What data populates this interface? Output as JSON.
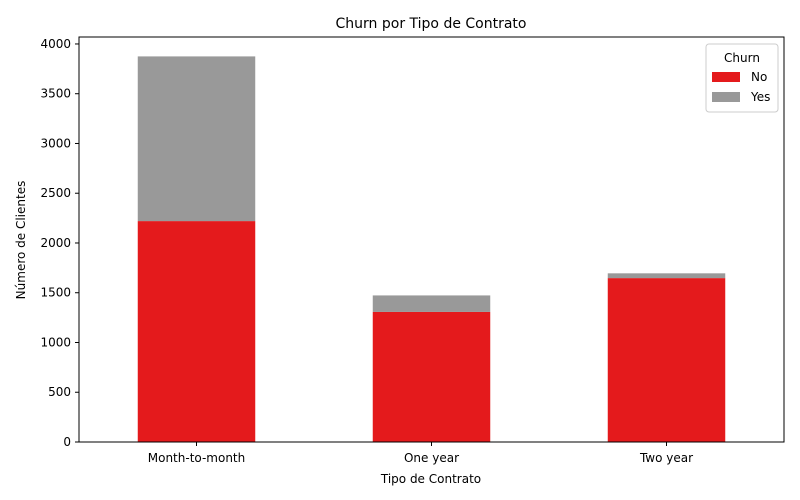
{
  "chart_data": {
    "type": "bar",
    "stacked": true,
    "title": "Churn por Tipo de Contrato",
    "xlabel": "Tipo de Contrato",
    "ylabel": "Número de Clientes",
    "categories": [
      "Month-to-month",
      "One year",
      "Two year"
    ],
    "series": [
      {
        "name": "No",
        "values": [
          2220,
          1307,
          1647
        ],
        "color": "#e41a1c"
      },
      {
        "name": "Yes",
        "values": [
          1655,
          166,
          48
        ],
        "color": "#999999"
      }
    ],
    "ylim": [
      0,
      4070
    ],
    "yticks": [
      0,
      500,
      1000,
      1500,
      2000,
      2500,
      3000,
      3500,
      4000
    ],
    "grid": false,
    "legend": {
      "title": "Churn",
      "placement": "top-right"
    }
  }
}
